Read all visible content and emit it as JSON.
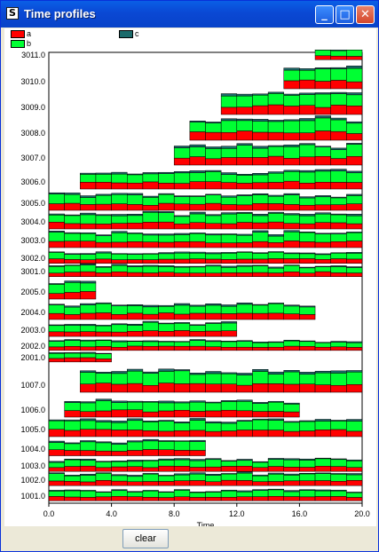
{
  "window": {
    "title": "Time profiles",
    "icon": "app-icon"
  },
  "title_buttons": {
    "minimize": "minimize-icon",
    "maximize": "maximize-icon",
    "close": "close-icon"
  },
  "legend": [
    {
      "label": "a",
      "color": "#ff0000"
    },
    {
      "label": "b",
      "color": "#00ff33"
    },
    {
      "label": "c",
      "color": "#1b6b6b"
    }
  ],
  "buttons": {
    "clear": "clear"
  },
  "chart_data": {
    "type": "bar",
    "title": "",
    "xlabel": "Time",
    "xlim": [
      0,
      20
    ],
    "x_ticks": [
      "0.0",
      "4.0",
      "8.0",
      "12.0",
      "16.0",
      "20.0"
    ],
    "y_ticks": [
      "3011.0",
      "3010.0",
      "3009.0",
      "3008.0",
      "3007.0",
      "3006.0",
      "3005.0",
      "3004.0",
      "3003.0",
      "3002.0",
      "3001.0",
      "2005.0",
      "2004.0",
      "2003.0",
      "2002.0",
      "2001.0",
      "1007.0",
      "1006.0",
      "1005.0",
      "1004.0",
      "1003.0",
      "1002.0",
      "1001.0"
    ],
    "series_names": [
      "a",
      "b",
      "c"
    ],
    "time_step": 1,
    "profiles": [
      {
        "id": "3011.0",
        "start": 17,
        "end": 20
      },
      {
        "id": "3010.0",
        "start": 15,
        "end": 20
      },
      {
        "id": "3009.0",
        "start": 11,
        "end": 20
      },
      {
        "id": "3008.0",
        "start": 9,
        "end": 20
      },
      {
        "id": "3007.0",
        "start": 8,
        "end": 20
      },
      {
        "id": "3006.0",
        "start": 2,
        "end": 20
      },
      {
        "id": "3005.0",
        "start": 0,
        "end": 20
      },
      {
        "id": "3004.0",
        "start": 0,
        "end": 20
      },
      {
        "id": "3003.0",
        "start": 0,
        "end": 20
      },
      {
        "id": "3002.0",
        "start": 0,
        "end": 20
      },
      {
        "id": "3001.0",
        "start": 0,
        "end": 20
      },
      {
        "id": "2005.0",
        "start": 0,
        "end": 3
      },
      {
        "id": "2004.0",
        "start": 0,
        "end": 17
      },
      {
        "id": "2003.0",
        "start": 0,
        "end": 12
      },
      {
        "id": "2002.0",
        "start": 0,
        "end": 20
      },
      {
        "id": "2001.0",
        "start": 0,
        "end": 4
      },
      {
        "id": "1007.0",
        "start": 2,
        "end": 20
      },
      {
        "id": "1006.0",
        "start": 1,
        "end": 16
      },
      {
        "id": "1005.0",
        "start": 0,
        "end": 20
      },
      {
        "id": "1004.0",
        "start": 0,
        "end": 10
      },
      {
        "id": "1003.0",
        "start": 0,
        "end": 20
      },
      {
        "id": "1002.0",
        "start": 0,
        "end": 20
      },
      {
        "id": "1001.0",
        "start": 0,
        "end": 20
      }
    ]
  }
}
